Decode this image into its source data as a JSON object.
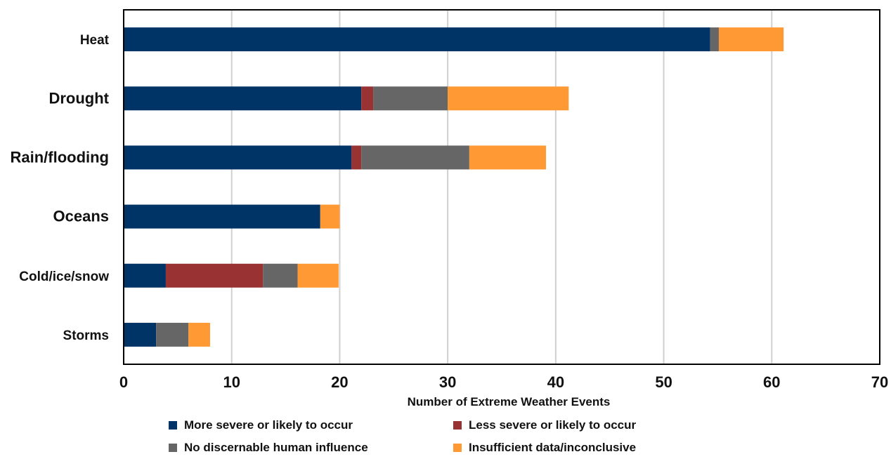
{
  "chart_data": {
    "type": "bar",
    "orientation": "horizontal",
    "stacked": true,
    "categories": [
      "Heat",
      "Drought",
      "Rain/flooding",
      "Oceans",
      "Cold/ice/snow",
      "Storms"
    ],
    "series": [
      {
        "name": "More severe or likely to occur",
        "color": "#003366",
        "values": [
          54.3,
          22,
          21.1,
          18.2,
          3.9,
          3
        ]
      },
      {
        "name": "Less severe or likely to occur",
        "color": "#993333",
        "values": [
          0,
          1.1,
          0.9,
          0,
          9,
          0
        ]
      },
      {
        "name": "No discernable human influence",
        "color": "#666666",
        "values": [
          0.8,
          6.9,
          10,
          0,
          3.2,
          3
        ]
      },
      {
        "name": "Insufficient data/inconclusive",
        "color": "#ff9933",
        "values": [
          6,
          11.2,
          7.1,
          1.8,
          3.8,
          2
        ]
      }
    ],
    "xlabel": "Number of Extreme Weather Events",
    "ylabel": "",
    "xlim": [
      0,
      70
    ],
    "xticks": [
      "0",
      "10",
      "20",
      "30",
      "40",
      "50",
      "60",
      "70"
    ],
    "grid": "vertical",
    "legend_position": "bottom"
  }
}
